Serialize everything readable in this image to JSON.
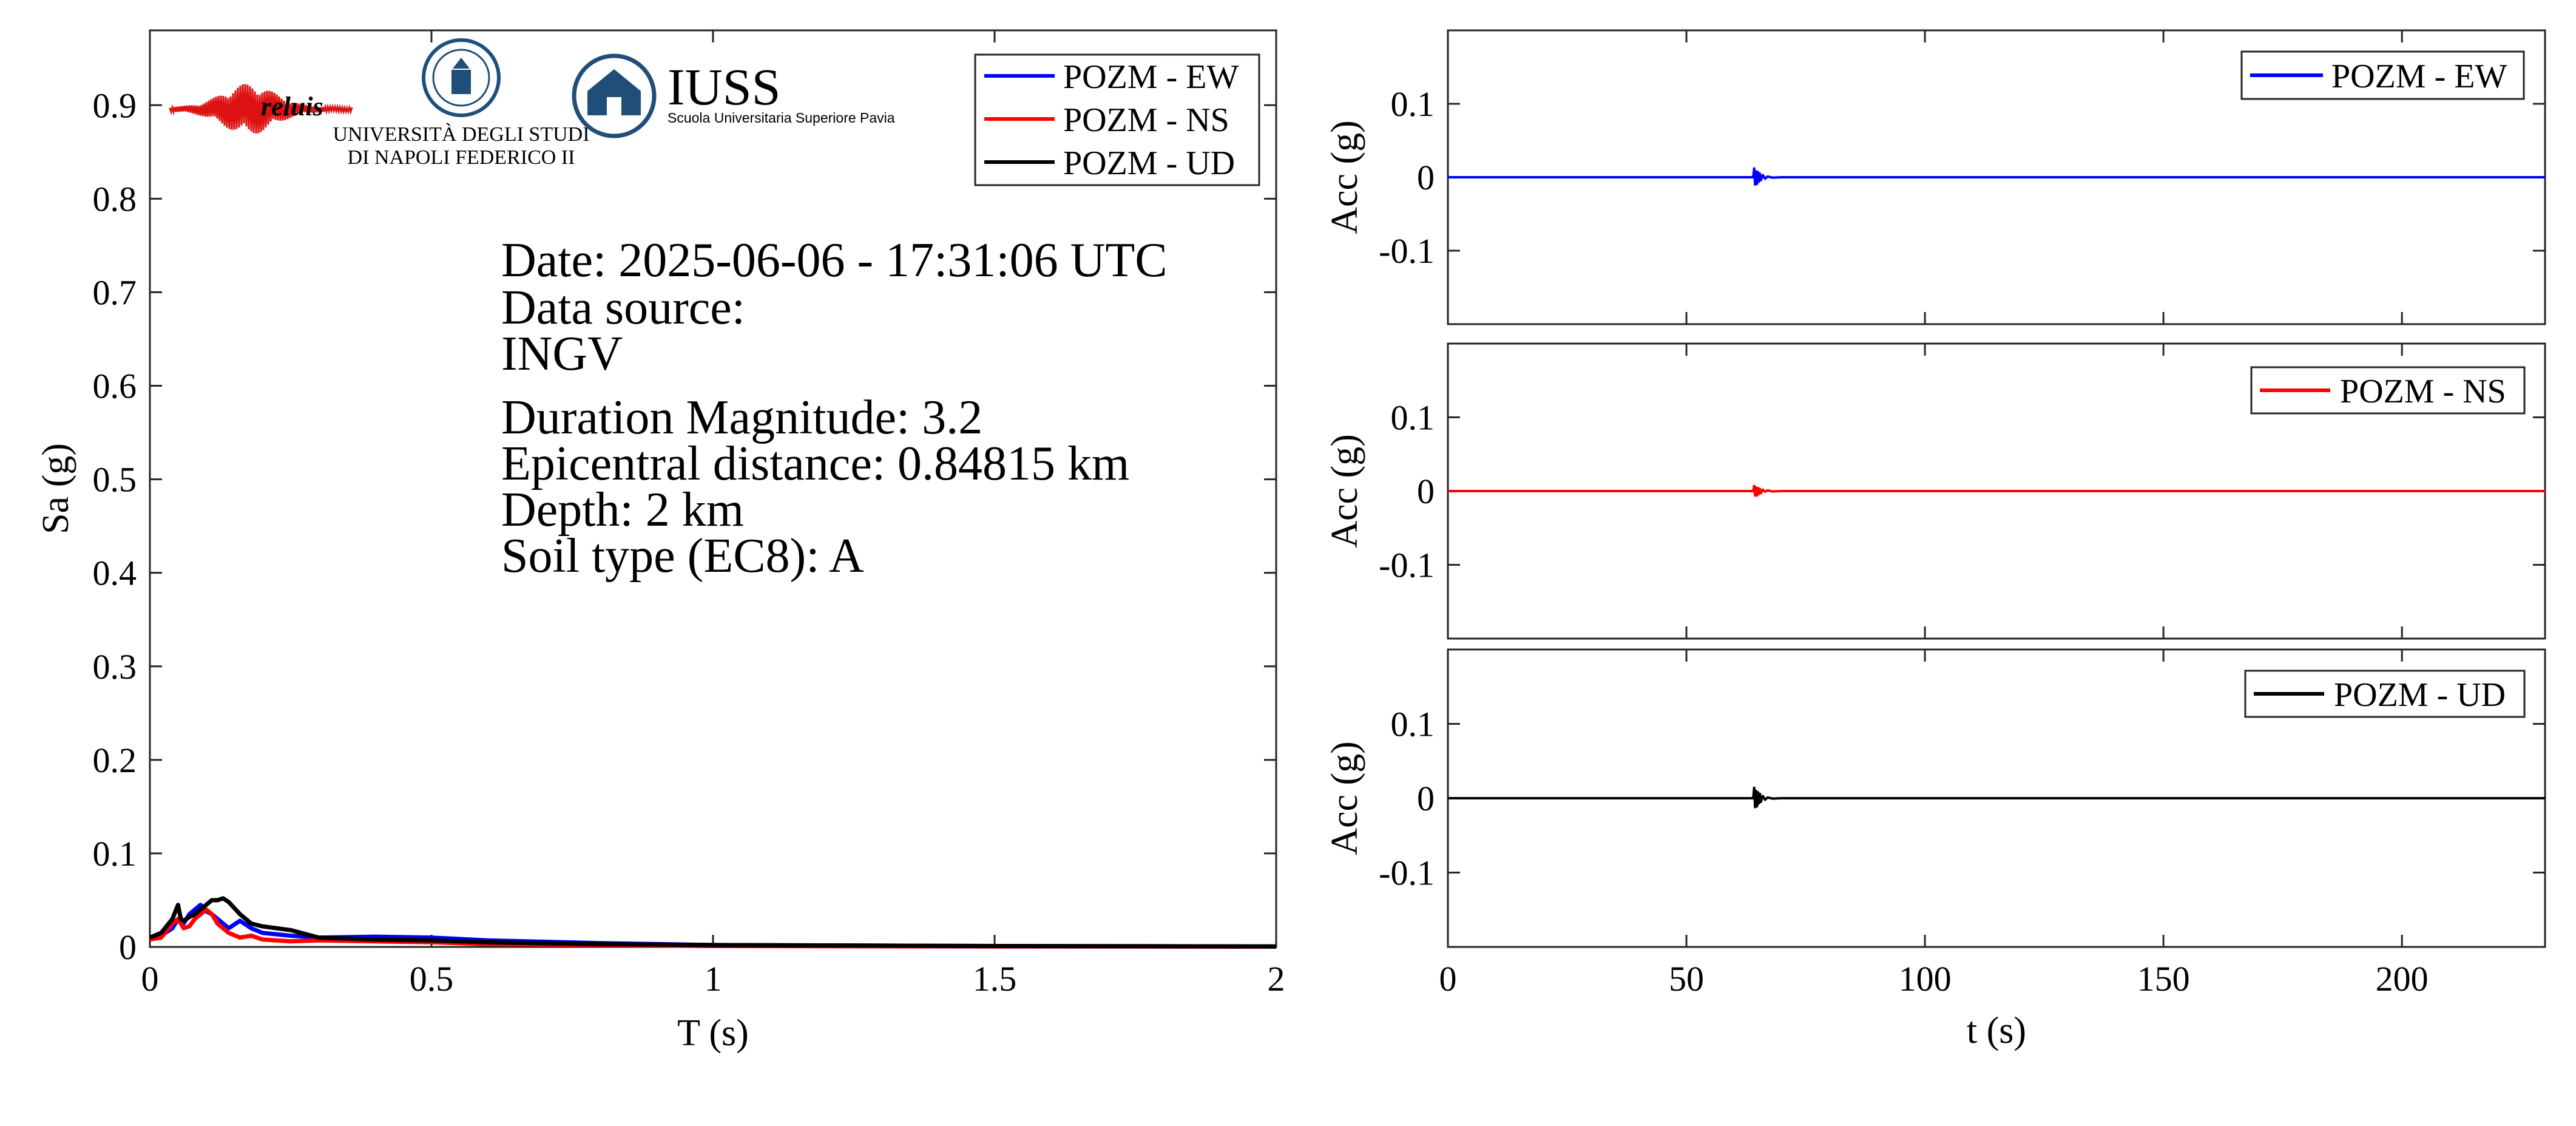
{
  "colors": {
    "EW": "#0000ff",
    "NS": "#ff0000",
    "UD": "#000000",
    "axis": "#262626",
    "iuss": "#1f4e79",
    "reluis": "#dd1111"
  },
  "logos": {
    "reluis": "reluis",
    "unina_line1": "UNIVERSITÀ DEGLI STUDI",
    "unina_line2": "DI NAPOLI FEDERICO II",
    "iuss_title": "IUSS",
    "iuss_subtitle": "Scuola Universitaria Superiore Pavia"
  },
  "info": {
    "date": "Date: 2025-06-06 - 17:31:06 UTC",
    "source_label": "Data source:",
    "source_value": "INGV",
    "magnitude": "Duration Magnitude: 3.2",
    "distance": "Epicentral distance: 0.84815 km",
    "depth": "Depth: 2 km",
    "soil": "Soil type (EC8): A"
  },
  "chart_data": [
    {
      "type": "line",
      "id": "spectrum",
      "xlabel": "T (s)",
      "ylabel": "Sa (g)",
      "xlim": [
        0,
        2
      ],
      "ylim": [
        0,
        0.98
      ],
      "xticks": [
        0,
        0.5,
        1,
        1.5,
        2
      ],
      "xtick_labels": [
        "0",
        "0.5",
        "1",
        "1.5",
        "2"
      ],
      "yticks": [
        0,
        0.1,
        0.2,
        0.3,
        0.4,
        0.5,
        0.6,
        0.7,
        0.8,
        0.9
      ],
      "ytick_labels": [
        "0",
        "0.1",
        "0.2",
        "0.3",
        "0.4",
        "0.5",
        "0.6",
        "0.7",
        "0.8",
        "0.9"
      ],
      "legend_position": "top-right",
      "series": [
        {
          "name": "POZM - EW",
          "color_key": "EW",
          "x": [
            0,
            0.02,
            0.04,
            0.05,
            0.06,
            0.07,
            0.08,
            0.09,
            0.1,
            0.11,
            0.12,
            0.14,
            0.16,
            0.18,
            0.2,
            0.25,
            0.3,
            0.4,
            0.5,
            0.6,
            0.8,
            1.0,
            1.5,
            2.0
          ],
          "y": [
            0.01,
            0.012,
            0.02,
            0.03,
            0.025,
            0.035,
            0.04,
            0.045,
            0.038,
            0.035,
            0.03,
            0.02,
            0.028,
            0.02,
            0.015,
            0.012,
            0.01,
            0.011,
            0.01,
            0.007,
            0.004,
            0.002,
            0.001,
            0.0005
          ]
        },
        {
          "name": "POZM - NS",
          "color_key": "NS",
          "x": [
            0,
            0.02,
            0.04,
            0.05,
            0.06,
            0.07,
            0.08,
            0.09,
            0.1,
            0.11,
            0.12,
            0.14,
            0.16,
            0.18,
            0.2,
            0.25,
            0.3,
            0.4,
            0.5,
            0.6,
            0.8,
            1.0,
            1.5,
            2.0
          ],
          "y": [
            0.008,
            0.01,
            0.025,
            0.03,
            0.02,
            0.022,
            0.03,
            0.035,
            0.04,
            0.035,
            0.025,
            0.015,
            0.01,
            0.012,
            0.008,
            0.006,
            0.007,
            0.006,
            0.005,
            0.003,
            0.002,
            0.001,
            0.0005,
            0.0003
          ]
        },
        {
          "name": "POZM - UD",
          "color_key": "UD",
          "x": [
            0,
            0.02,
            0.04,
            0.05,
            0.055,
            0.06,
            0.07,
            0.08,
            0.09,
            0.1,
            0.11,
            0.12,
            0.13,
            0.14,
            0.16,
            0.18,
            0.2,
            0.25,
            0.3,
            0.4,
            0.5,
            0.6,
            0.8,
            1.0,
            1.5,
            2.0
          ],
          "y": [
            0.01,
            0.015,
            0.03,
            0.045,
            0.03,
            0.028,
            0.032,
            0.035,
            0.04,
            0.045,
            0.05,
            0.05,
            0.052,
            0.048,
            0.035,
            0.025,
            0.022,
            0.018,
            0.01,
            0.008,
            0.007,
            0.005,
            0.003,
            0.002,
            0.001,
            0.0005
          ]
        }
      ]
    },
    {
      "type": "line",
      "id": "accelerogram-ew",
      "ylabel": "Acc (g)",
      "xlim": [
        0,
        230
      ],
      "ylim": [
        -0.2,
        0.2
      ],
      "yticks": [
        0.1,
        0,
        -0.1
      ],
      "ytick_labels": [
        "0.1",
        "0",
        "-0.1"
      ],
      "legend_position": "top-right",
      "series": [
        {
          "name": "POZM - EW",
          "color_key": "EW",
          "x": [
            0,
            64.0,
            64.2,
            64.4,
            64.6,
            64.8,
            65.0,
            65.2,
            65.4,
            65.6,
            66.0,
            66.5,
            67.0,
            68.0,
            70.0,
            230
          ],
          "y": [
            0,
            0,
            0.012,
            -0.01,
            0.008,
            -0.009,
            0.007,
            -0.006,
            0.005,
            -0.004,
            0.003,
            -0.002,
            0.001,
            -0.0005,
            0,
            0
          ]
        }
      ]
    },
    {
      "type": "line",
      "id": "accelerogram-ns",
      "ylabel": "Acc (g)",
      "xlim": [
        0,
        230
      ],
      "ylim": [
        -0.2,
        0.2
      ],
      "yticks": [
        0.1,
        0,
        -0.1
      ],
      "ytick_labels": [
        "0.1",
        "0",
        "-0.1"
      ],
      "legend_position": "top-right",
      "series": [
        {
          "name": "POZM - NS",
          "color_key": "NS",
          "x": [
            0,
            64.0,
            64.2,
            64.4,
            64.6,
            64.8,
            65.0,
            65.2,
            65.4,
            65.6,
            66.0,
            66.5,
            67.0,
            68.0,
            70.0,
            230
          ],
          "y": [
            0,
            0,
            0.007,
            -0.006,
            0.005,
            -0.006,
            0.004,
            -0.004,
            0.003,
            -0.003,
            0.002,
            -0.001,
            0.001,
            -0.0005,
            0,
            0
          ]
        }
      ]
    },
    {
      "type": "line",
      "id": "accelerogram-ud",
      "xlabel": "t (s)",
      "ylabel": "Acc (g)",
      "xlim": [
        0,
        230
      ],
      "ylim": [
        -0.2,
        0.2
      ],
      "xticks": [
        0,
        50,
        100,
        150,
        200
      ],
      "xtick_labels": [
        "0",
        "50",
        "100",
        "150",
        "200"
      ],
      "yticks": [
        0.1,
        0,
        -0.1
      ],
      "ytick_labels": [
        "0.1",
        "0",
        "-0.1"
      ],
      "legend_position": "top-right",
      "series": [
        {
          "name": "POZM - UD",
          "color_key": "UD",
          "x": [
            0,
            64.0,
            64.2,
            64.4,
            64.6,
            64.8,
            65.0,
            65.2,
            65.4,
            65.6,
            66.0,
            66.5,
            67.0,
            68.0,
            70.0,
            230
          ],
          "y": [
            0,
            0,
            0.014,
            -0.012,
            0.01,
            -0.011,
            0.008,
            -0.007,
            0.006,
            -0.005,
            0.003,
            -0.002,
            0.001,
            -0.0005,
            0,
            0
          ]
        }
      ]
    }
  ]
}
